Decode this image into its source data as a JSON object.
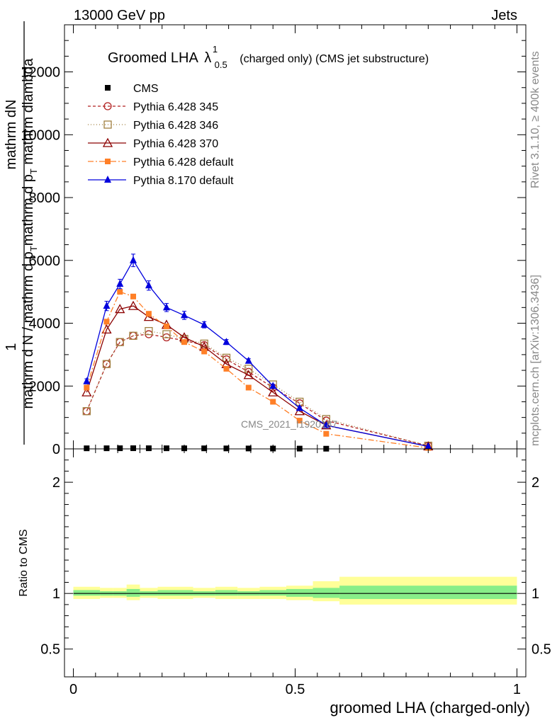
{
  "header": {
    "left": "13000 GeV pp",
    "right": "Jets"
  },
  "title_main": "Groomed LHA",
  "title_lambda": "λ",
  "title_sup": "1",
  "title_sub": "0.5",
  "title_rest": "(charged only) (CMS jet substructure)",
  "side_label_top": "Rivet 3.1.10, ≥ 400k events",
  "side_label_bottom": "mcplots.cern.ch [arXiv:1306.3436]",
  "watermark": "CMS_2021_I1920187",
  "ylabel_top": {
    "one": "1",
    "num": "mathrm dN",
    "den1": "mathrm d N / mathrm d p",
    "den_sub": "T",
    "den2": "mathrm d p",
    "den2_sub": "T",
    "den3": " mathrm dlambda"
  },
  "ylabel_ratio": "Ratio to CMS",
  "xlabel": "groomed LHA (charged-only)",
  "chart_data": [
    {
      "type": "line",
      "panel": "main",
      "xlim": [
        -0.02,
        1.02
      ],
      "ylim": [
        0,
        13500
      ],
      "yticks": [
        0,
        2000,
        4000,
        6000,
        8000,
        10000,
        12000
      ],
      "ytick_labels": [
        "0",
        "2000",
        "4000",
        "6000",
        "8000",
        "10000",
        "12000"
      ],
      "legend_position": "top-left",
      "series": [
        {
          "name": "CMS",
          "color": "#000000",
          "marker": "square-filled",
          "dash": "none",
          "x": [
            0.03,
            0.075,
            0.105,
            0.135,
            0.17,
            0.21,
            0.25,
            0.295,
            0.345,
            0.395,
            0.45,
            0.51,
            0.57
          ],
          "y": [
            18,
            19,
            20,
            21,
            20,
            19,
            18,
            17,
            15,
            13,
            11,
            9,
            6
          ]
        },
        {
          "name": "Pythia 6.428 345",
          "color": "#b22222",
          "marker": "circle-open",
          "dash": "4,3",
          "x": [
            0.03,
            0.075,
            0.105,
            0.135,
            0.17,
            0.21,
            0.25,
            0.295,
            0.345,
            0.395,
            0.45,
            0.51,
            0.57,
            0.8
          ],
          "y": [
            1200,
            2700,
            3400,
            3600,
            3650,
            3550,
            3450,
            3300,
            2850,
            2450,
            1950,
            1450,
            900,
            100
          ]
        },
        {
          "name": "Pythia 6.428 346",
          "color": "#a08040",
          "marker": "square-open",
          "dash": "1,3",
          "x": [
            0.03,
            0.075,
            0.105,
            0.135,
            0.17,
            0.21,
            0.25,
            0.295,
            0.345,
            0.395,
            0.45,
            0.51,
            0.57,
            0.8
          ],
          "y": [
            1200,
            2700,
            3400,
            3600,
            3750,
            3650,
            3500,
            3350,
            2900,
            2550,
            2050,
            1500,
            950,
            100
          ]
        },
        {
          "name": "Pythia 6.428 370",
          "color": "#8b0000",
          "marker": "triangle-open",
          "dash": "none",
          "x": [
            0.03,
            0.075,
            0.105,
            0.135,
            0.17,
            0.21,
            0.25,
            0.295,
            0.345,
            0.395,
            0.45,
            0.51,
            0.57,
            0.8
          ],
          "y": [
            1800,
            3800,
            4450,
            4550,
            4200,
            3950,
            3550,
            3250,
            2700,
            2350,
            1800,
            1200,
            750,
            80
          ]
        },
        {
          "name": "Pythia 6.428 default",
          "color": "#ff7f27",
          "marker": "square-filled",
          "dash": "8,3,2,3",
          "x": [
            0.03,
            0.075,
            0.105,
            0.135,
            0.17,
            0.21,
            0.25,
            0.295,
            0.345,
            0.395,
            0.45,
            0.51,
            0.57,
            0.8
          ],
          "y": [
            1950,
            4050,
            5000,
            4850,
            4300,
            3900,
            3400,
            3100,
            2550,
            1950,
            1500,
            900,
            480,
            30
          ]
        },
        {
          "name": "Pythia 8.170 default",
          "color": "#0000dd",
          "marker": "triangle-filled",
          "dash": "none",
          "x": [
            0.03,
            0.075,
            0.105,
            0.135,
            0.17,
            0.21,
            0.25,
            0.295,
            0.345,
            0.395,
            0.45,
            0.51,
            0.57,
            0.8
          ],
          "y": [
            2150,
            4550,
            5250,
            6000,
            5200,
            4500,
            4250,
            3950,
            3400,
            2800,
            2000,
            1300,
            750,
            80
          ],
          "yerr": [
            80,
            150,
            150,
            200,
            150,
            130,
            130,
            100,
            80,
            70,
            50,
            40,
            30,
            10
          ]
        }
      ]
    },
    {
      "type": "area",
      "panel": "ratio",
      "xlim": [
        -0.02,
        1.02
      ],
      "ylim": [
        0.25,
        2.3
      ],
      "yticks": [
        0.5,
        1,
        2
      ],
      "ytick_labels": [
        "0.5",
        "1",
        "2"
      ],
      "xticks": [
        0,
        0.5,
        1
      ],
      "xtick_labels": [
        "0",
        "0.5",
        "1"
      ],
      "bins": [
        0,
        0.06,
        0.09,
        0.12,
        0.15,
        0.19,
        0.23,
        0.27,
        0.32,
        0.37,
        0.42,
        0.48,
        0.54,
        0.6,
        1.0
      ],
      "band_yellow": {
        "color": "#ffff99",
        "lo": [
          0.95,
          0.96,
          0.96,
          0.94,
          0.96,
          0.95,
          0.95,
          0.96,
          0.95,
          0.95,
          0.95,
          0.94,
          0.93,
          0.9
        ],
        "hi": [
          1.06,
          1.05,
          1.05,
          1.08,
          1.05,
          1.06,
          1.06,
          1.05,
          1.06,
          1.05,
          1.06,
          1.07,
          1.11,
          1.15
        ]
      },
      "band_green": {
        "color": "#88ee88",
        "lo": [
          0.98,
          0.98,
          0.98,
          0.97,
          0.98,
          0.98,
          0.98,
          0.98,
          0.98,
          0.98,
          0.98,
          0.97,
          0.96,
          0.95
        ],
        "hi": [
          1.03,
          1.02,
          1.02,
          1.04,
          1.02,
          1.03,
          1.03,
          1.02,
          1.03,
          1.02,
          1.03,
          1.04,
          1.05,
          1.07
        ]
      },
      "reference": 1
    }
  ]
}
